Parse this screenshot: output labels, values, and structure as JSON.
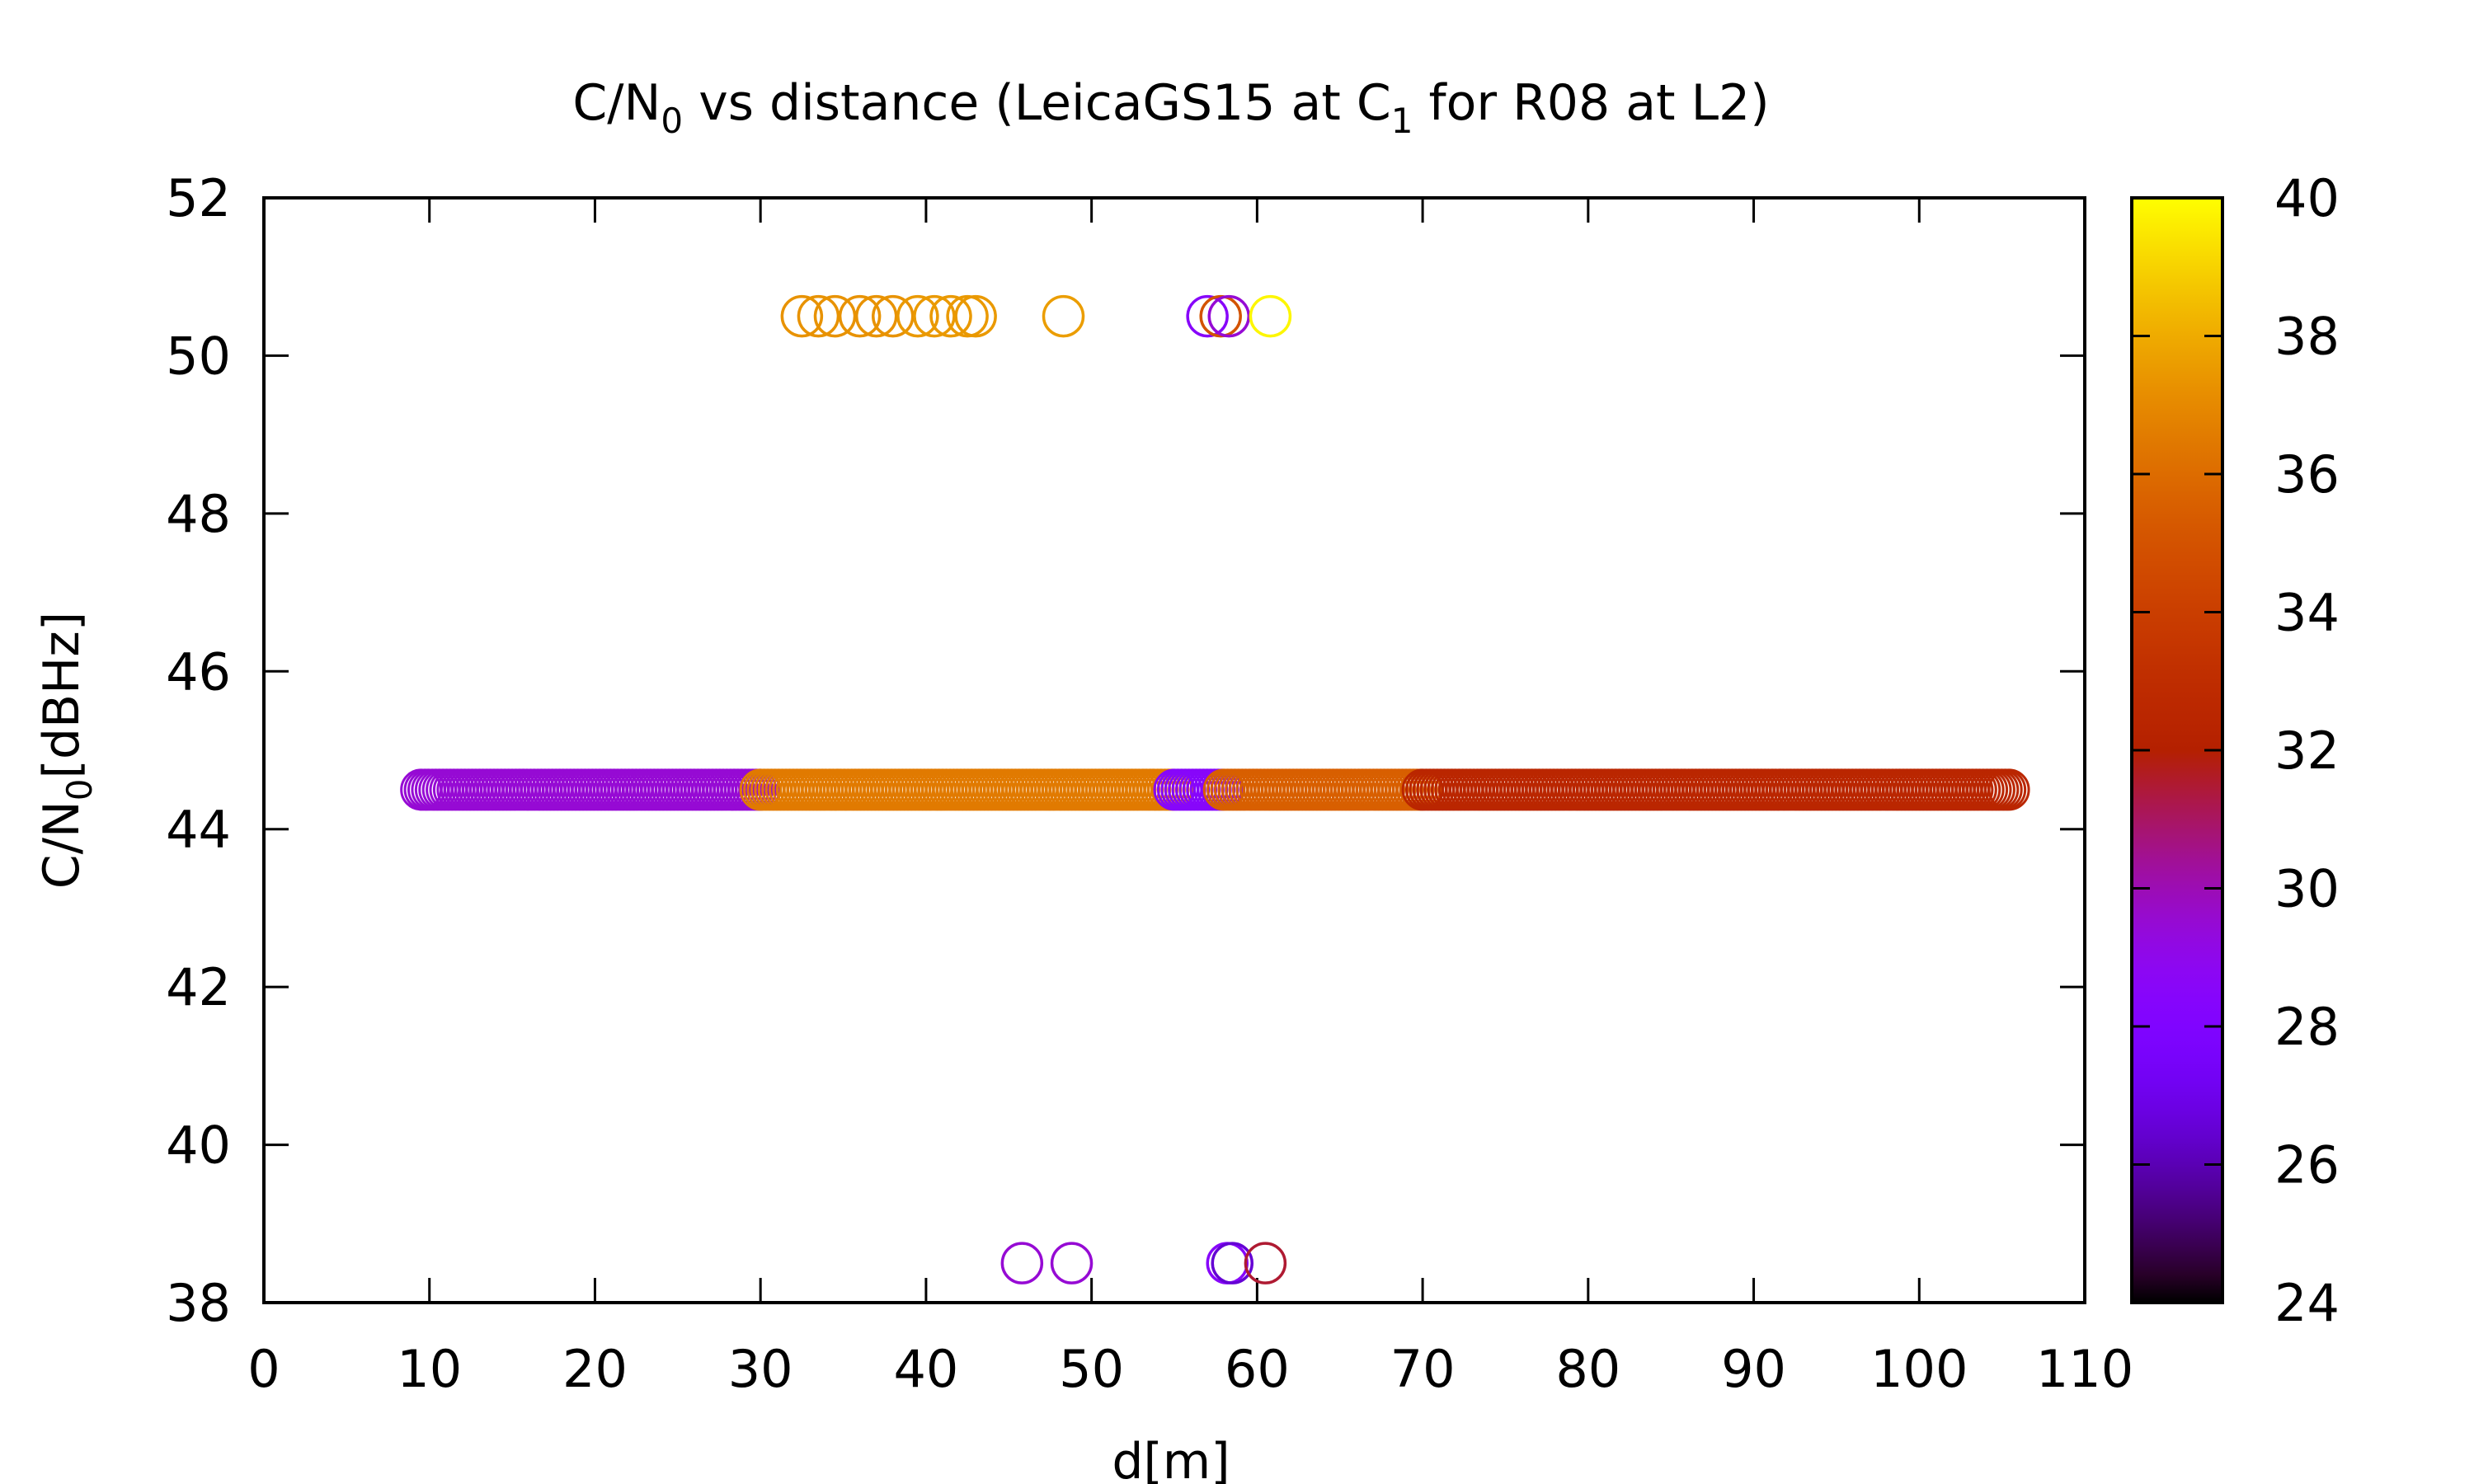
{
  "chart_data": {
    "type": "scatter",
    "title": {
      "main": "C/N",
      "sub": "0",
      "middle": " vs distance (LeicaGS15 at C",
      "sub2": "1",
      "end": " for R08 at L2)"
    },
    "xlabel": "d[m]",
    "ylabel": {
      "main": "C/N",
      "sub": "0",
      "end": "[dBHz]"
    },
    "xlim": [
      0,
      110
    ],
    "ylim": [
      38,
      52
    ],
    "xticks": [
      "0",
      "10",
      "20",
      "30",
      "40",
      "50",
      "60",
      "70",
      "80",
      "90",
      "100",
      "110"
    ],
    "yticks": [
      "38",
      "40",
      "42",
      "44",
      "46",
      "48",
      "50",
      "52"
    ],
    "colorbar": {
      "range": [
        24,
        40
      ],
      "ticks": [
        "24",
        "26",
        "28",
        "30",
        "32",
        "34",
        "36",
        "38",
        "40"
      ],
      "palette": "gnuplot (black-blue-purple-red-orange-yellow)"
    },
    "series": [
      {
        "y": 44.5,
        "segments": [
          {
            "x_from": 9.5,
            "x_to": 30,
            "color_value": 29.5
          },
          {
            "x_from": 30,
            "x_to": 55,
            "color_value": 36.5
          },
          {
            "x_from": 55,
            "x_to": 58,
            "color_value": 28.5
          },
          {
            "x_from": 58,
            "x_to": 70,
            "color_value": 35.5
          },
          {
            "x_from": 70,
            "x_to": 105.5,
            "color_value": 32.5
          }
        ]
      },
      {
        "y": 50.5,
        "points": [
          {
            "x": 32.5,
            "c": 37.3
          },
          {
            "x": 33.5,
            "c": 37.3
          },
          {
            "x": 34.5,
            "c": 37.3
          },
          {
            "x": 36,
            "c": 37.3
          },
          {
            "x": 37,
            "c": 37.3
          },
          {
            "x": 38,
            "c": 37.3
          },
          {
            "x": 39.5,
            "c": 37.5
          },
          {
            "x": 40.5,
            "c": 37.5
          },
          {
            "x": 41.5,
            "c": 37.5
          },
          {
            "x": 42.5,
            "c": 37.5
          },
          {
            "x": 43,
            "c": 37.5
          },
          {
            "x": 48.3,
            "c": 37.6
          },
          {
            "x": 57,
            "c": 28.5
          },
          {
            "x": 57.8,
            "c": 35
          },
          {
            "x": 58.3,
            "c": 29.5
          },
          {
            "x": 60.8,
            "c": 39.8
          }
        ]
      },
      {
        "y": 38.5,
        "points": [
          {
            "x": 45.8,
            "c": 29.5
          },
          {
            "x": 48.8,
            "c": 29.5
          },
          {
            "x": 58.2,
            "c": 28.5
          },
          {
            "x": 58.5,
            "c": 26.5
          },
          {
            "x": 60.5,
            "c": 31.5
          }
        ]
      }
    ]
  }
}
